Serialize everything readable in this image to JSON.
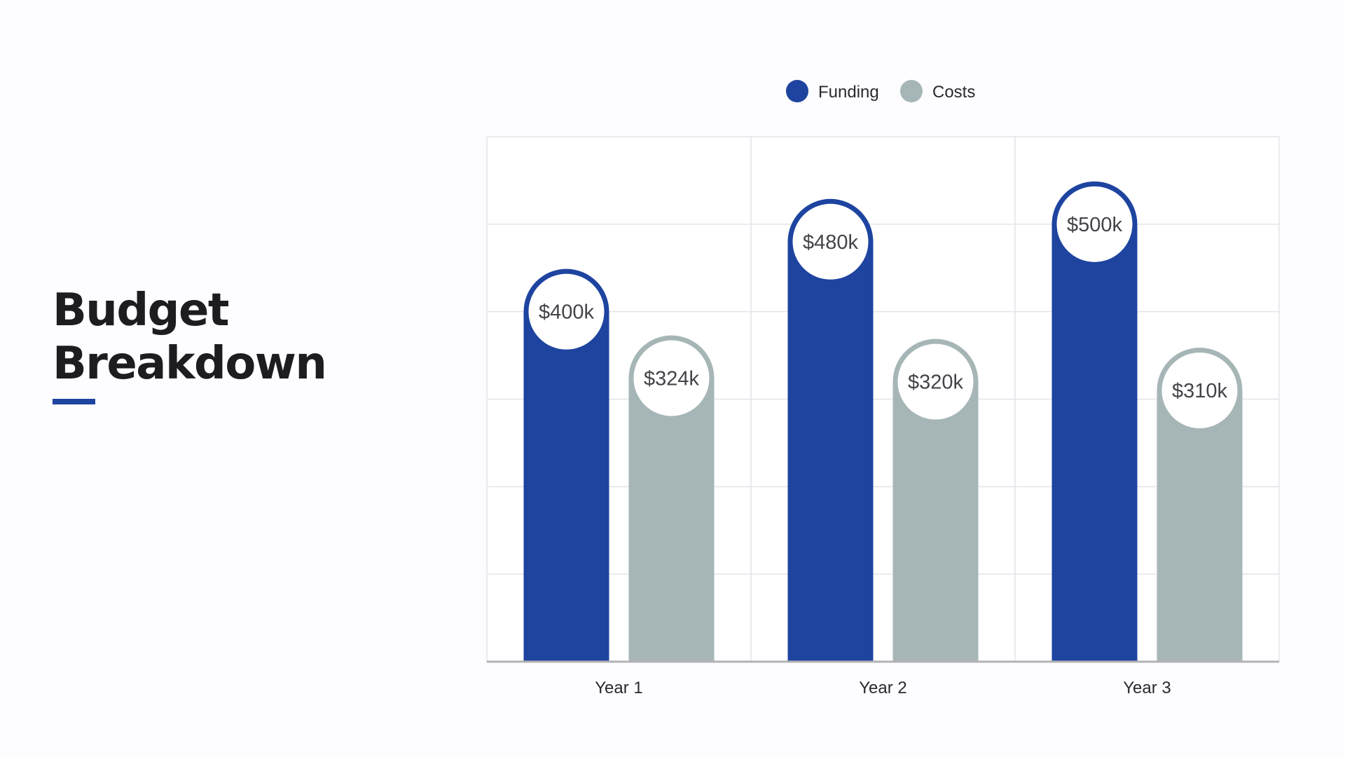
{
  "slide": {
    "title_line1": "Budget",
    "title_line2": "Breakdown"
  },
  "colors": {
    "funding": "#1e44a0",
    "costs": "#a6b6b7",
    "grid": "#e4e3ea",
    "axis": "#b2b2b6",
    "title": "#1d1c1f",
    "accent": "#1e44a0"
  },
  "chart_data": {
    "type": "bar",
    "title": "",
    "xlabel": "",
    "ylabel": "",
    "categories": [
      "Year 1",
      "Year 2",
      "Year 3"
    ],
    "series": [
      {
        "name": "Funding",
        "values": [
          400,
          480,
          500
        ],
        "labels": [
          "$400k",
          "$480k",
          "$500k"
        ]
      },
      {
        "name": "Costs",
        "values": [
          324,
          320,
          310
        ],
        "labels": [
          "$324k",
          "$320k",
          "$310k"
        ]
      }
    ],
    "ylim": [
      0,
      600
    ],
    "unit": "$k",
    "grid": true,
    "legend": "top-center"
  }
}
